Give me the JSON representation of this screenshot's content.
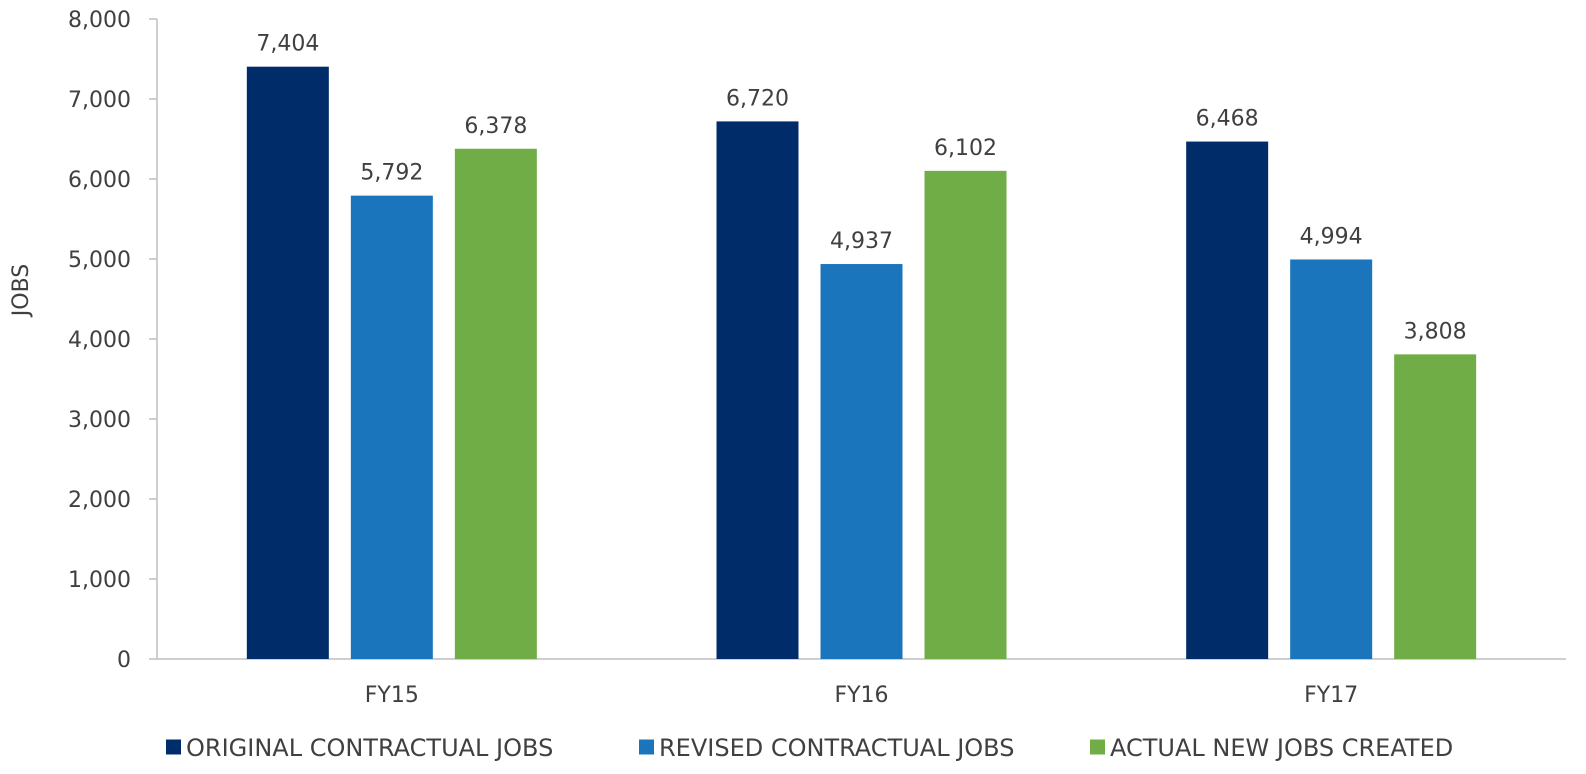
{
  "chart_data": {
    "type": "bar",
    "categories": [
      "FY15",
      "FY16",
      "FY17"
    ],
    "series": [
      {
        "name": "ORIGINAL CONTRACTUAL JOBS",
        "color": "#002D6A",
        "values": [
          7404,
          6720,
          6468
        ],
        "labels": [
          "7,404",
          "6,720",
          "6,468"
        ]
      },
      {
        "name": "REVISED CONTRACTUAL JOBS",
        "color": "#1B75BC",
        "values": [
          5792,
          4937,
          4994
        ],
        "labels": [
          "5,792",
          "4,937",
          "4,994"
        ]
      },
      {
        "name": "ACTUAL NEW JOBS CREATED",
        "color": "#70AD47",
        "values": [
          6378,
          6102,
          3808
        ],
        "labels": [
          "6,378",
          "6,102",
          "3,808"
        ]
      }
    ],
    "title": "",
    "xlabel": "",
    "ylabel": "JOBS",
    "ylim": [
      0,
      8000
    ],
    "yticks": [
      0,
      1000,
      2000,
      3000,
      4000,
      5000,
      6000,
      7000,
      8000
    ],
    "ytick_labels": [
      "0",
      "1,000",
      "2,000",
      "3,000",
      "4,000",
      "5,000",
      "6,000",
      "7,000",
      "8,000"
    ],
    "grid": false,
    "legend_position": "bottom",
    "axis_color": "#BFBFBF"
  }
}
